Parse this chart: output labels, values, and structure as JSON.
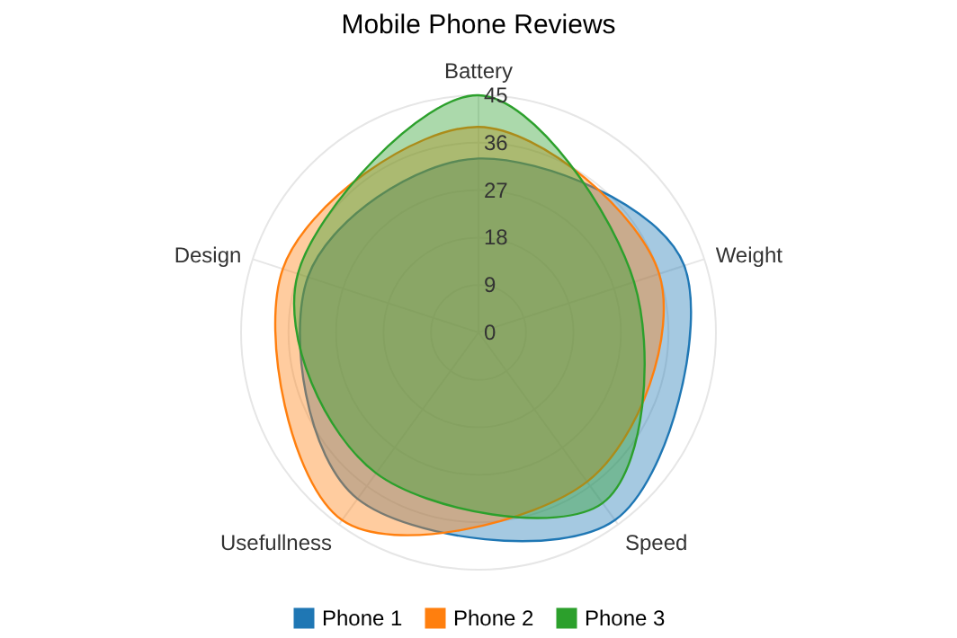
{
  "chart_data": {
    "type": "radar",
    "title": "Mobile Phone Reviews",
    "categories": [
      "Battery",
      "Weight",
      "Speed",
      "Usefullness",
      "Design"
    ],
    "series": [
      {
        "name": "Phone 1",
        "color": "#1f77b4",
        "values": [
          33,
          41,
          44,
          39,
          34
        ]
      },
      {
        "name": "Phone 2",
        "color": "#ff7f0e",
        "values": [
          39,
          36,
          35,
          44,
          39
        ]
      },
      {
        "name": "Phone 3",
        "color": "#2ca02c",
        "values": [
          45,
          31,
          40,
          33,
          36
        ]
      }
    ],
    "ylim": [
      0,
      45
    ],
    "yticks": [
      0,
      9,
      18,
      27,
      36,
      45
    ],
    "grid": true,
    "legend": "bottom"
  }
}
